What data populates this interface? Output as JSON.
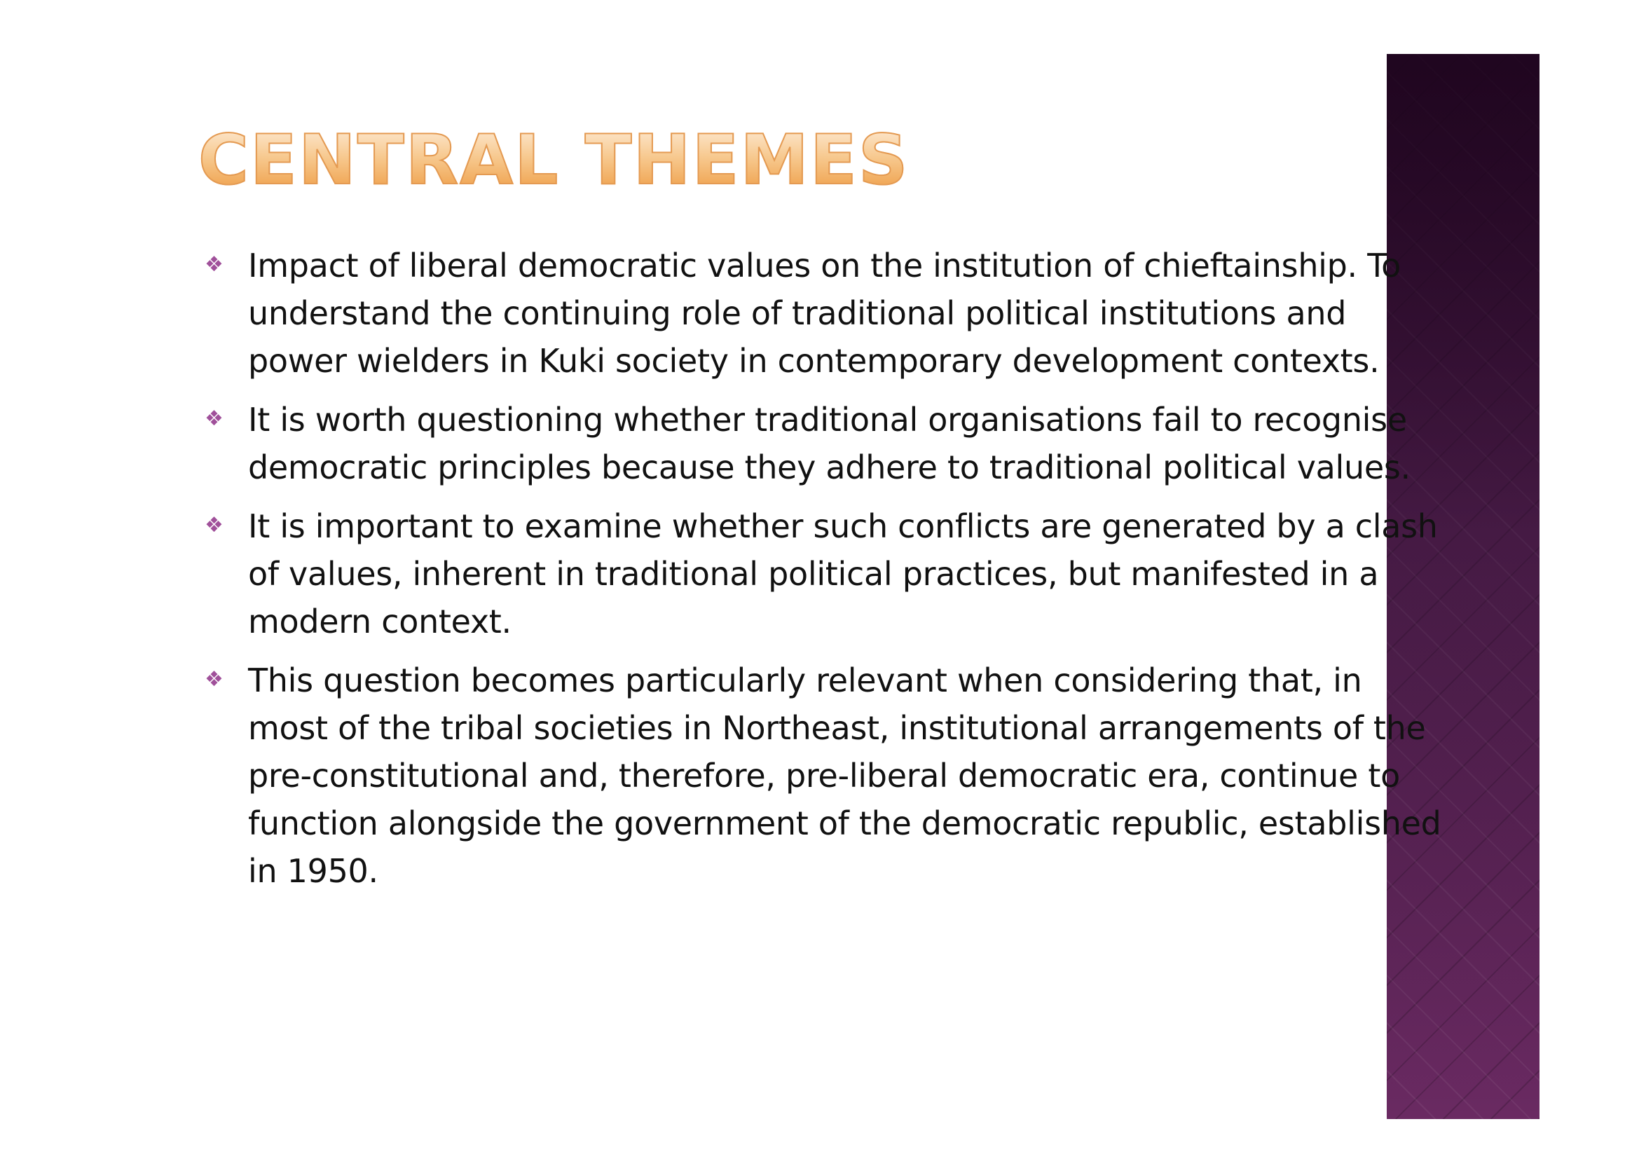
{
  "slide": {
    "title": "CENTRAL THEMES",
    "bullet_icon": "diamond-four-petal-icon",
    "colors": {
      "title_top": "#fde9d2",
      "title_bottom": "#ee9c44",
      "bullet_marker": "#a0509a",
      "side_band": "#4a1d48",
      "text": "#111111"
    },
    "bullets": [
      "Impact of liberal democratic values on the institution of chieftainship. To understand the continuing role of traditional political institutions and power wielders in Kuki society in contemporary development contexts.",
      "It is worth questioning whether traditional organisations fail to recognise democratic principles because they adhere to traditional political values.",
      "It is important to examine whether such conflicts are generated by a clash of values, inherent in traditional political practices, but manifested in a modern context.",
      "This question becomes particularly relevant when considering that, in most of the tribal societies in Northeast, institutional arrangements of the pre-constitutional and, therefore, pre-liberal democratic era, continue to function alongside the government of the democratic republic, established in 1950."
    ]
  }
}
